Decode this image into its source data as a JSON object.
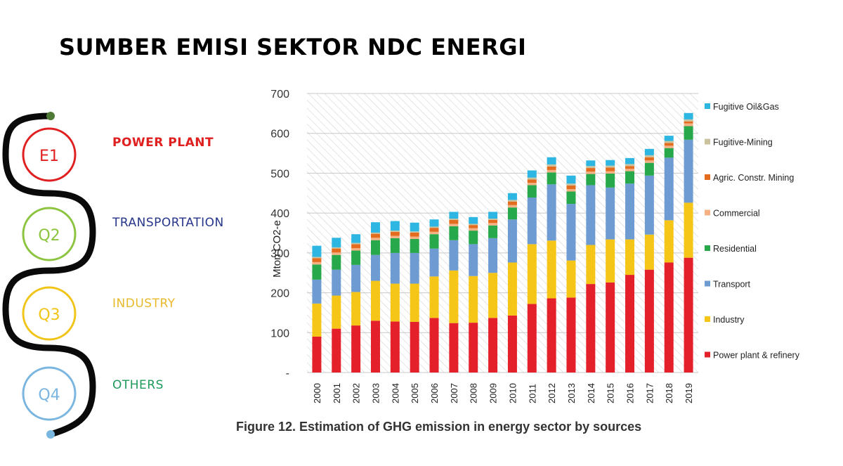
{
  "slide": {
    "title": "SUMBER EMISI SEKTOR NDC ENERGI"
  },
  "roadmap": {
    "items": [
      {
        "code": "E1",
        "label": "POWER PLANT",
        "color": "#e02020",
        "bold": true
      },
      {
        "code": "Q2",
        "label": "TRANSPORTATION",
        "color": "#26368a",
        "bold": false
      },
      {
        "code": "Q3",
        "label": "INDUSTRY",
        "color": "#e8b92a",
        "bold": false
      },
      {
        "code": "Q4",
        "label": "OTHERS",
        "color": "#1f9a5c",
        "bold": false
      }
    ],
    "ring_colors": [
      "#e02020",
      "#8cc43f",
      "#f0c419",
      "#7ab6e0"
    ],
    "start_dot_color": "#4f7a35",
    "end_dot_color": "#7ab6e0"
  },
  "chart_data": {
    "type": "bar",
    "stacked": true,
    "title": "",
    "caption": "Figure 12. Estimation of GHG emission in energy sector by sources",
    "ylabel": "Mton  CO2-e",
    "xlabel": "",
    "ylim": [
      0,
      700
    ],
    "yticks": [
      0,
      100,
      200,
      300,
      400,
      500,
      600,
      700
    ],
    "ytick_labels": [
      "-",
      "100",
      "200",
      "300",
      "400",
      "500",
      "600",
      "700"
    ],
    "grid": true,
    "legend_position": "right",
    "categories": [
      "2000",
      "2001",
      "2002",
      "2003",
      "2004",
      "2005",
      "2006",
      "2007",
      "2008",
      "2009",
      "2010",
      "2011",
      "2012",
      "2013",
      "2014",
      "2015",
      "2016",
      "2017",
      "2018",
      "2019"
    ],
    "series": [
      {
        "name": "Power plant & refinery",
        "color": "#e4202a",
        "values": [
          90,
          110,
          118,
          130,
          128,
          127,
          137,
          124,
          125,
          137,
          143,
          172,
          186,
          188,
          222,
          226,
          245,
          258,
          276,
          288
        ]
      },
      {
        "name": "Industry",
        "color": "#f5c518",
        "values": [
          83,
          83,
          84,
          100,
          95,
          96,
          104,
          132,
          117,
          113,
          133,
          150,
          145,
          93,
          98,
          108,
          89,
          88,
          106,
          138
        ]
      },
      {
        "name": "Transport",
        "color": "#6d9bd2",
        "values": [
          60,
          65,
          68,
          65,
          77,
          77,
          70,
          76,
          80,
          87,
          108,
          117,
          141,
          142,
          150,
          130,
          140,
          148,
          157,
          158
        ]
      },
      {
        "name": "Residential",
        "color": "#27a84a",
        "values": [
          38,
          37,
          36,
          37,
          37,
          35,
          36,
          35,
          34,
          32,
          30,
          31,
          30,
          31,
          28,
          35,
          31,
          32,
          24,
          34
        ]
      },
      {
        "name": "Commercial",
        "color": "#f4b183",
        "values": [
          6,
          6,
          6,
          6,
          6,
          6,
          6,
          6,
          6,
          6,
          6,
          6,
          6,
          6,
          6,
          6,
          6,
          6,
          6,
          7
        ]
      },
      {
        "name": "Agric. Constr. Mining",
        "color": "#e46c1e",
        "values": [
          10,
          10,
          10,
          10,
          10,
          10,
          10,
          10,
          8,
          8,
          9,
          8,
          9,
          9,
          9,
          9,
          7,
          8,
          7,
          5
        ]
      },
      {
        "name": "Fugitive-Mining",
        "color": "#c9c29d",
        "values": [
          3,
          3,
          3,
          3,
          3,
          3,
          3,
          3,
          3,
          3,
          4,
          5,
          5,
          5,
          5,
          5,
          5,
          5,
          5,
          5
        ]
      },
      {
        "name": "Fugitive Oil&Gas",
        "color": "#2eb6e2",
        "values": [
          28,
          24,
          22,
          26,
          24,
          22,
          18,
          17,
          17,
          17,
          17,
          18,
          18,
          20,
          14,
          14,
          15,
          16,
          13,
          16
        ]
      }
    ]
  }
}
